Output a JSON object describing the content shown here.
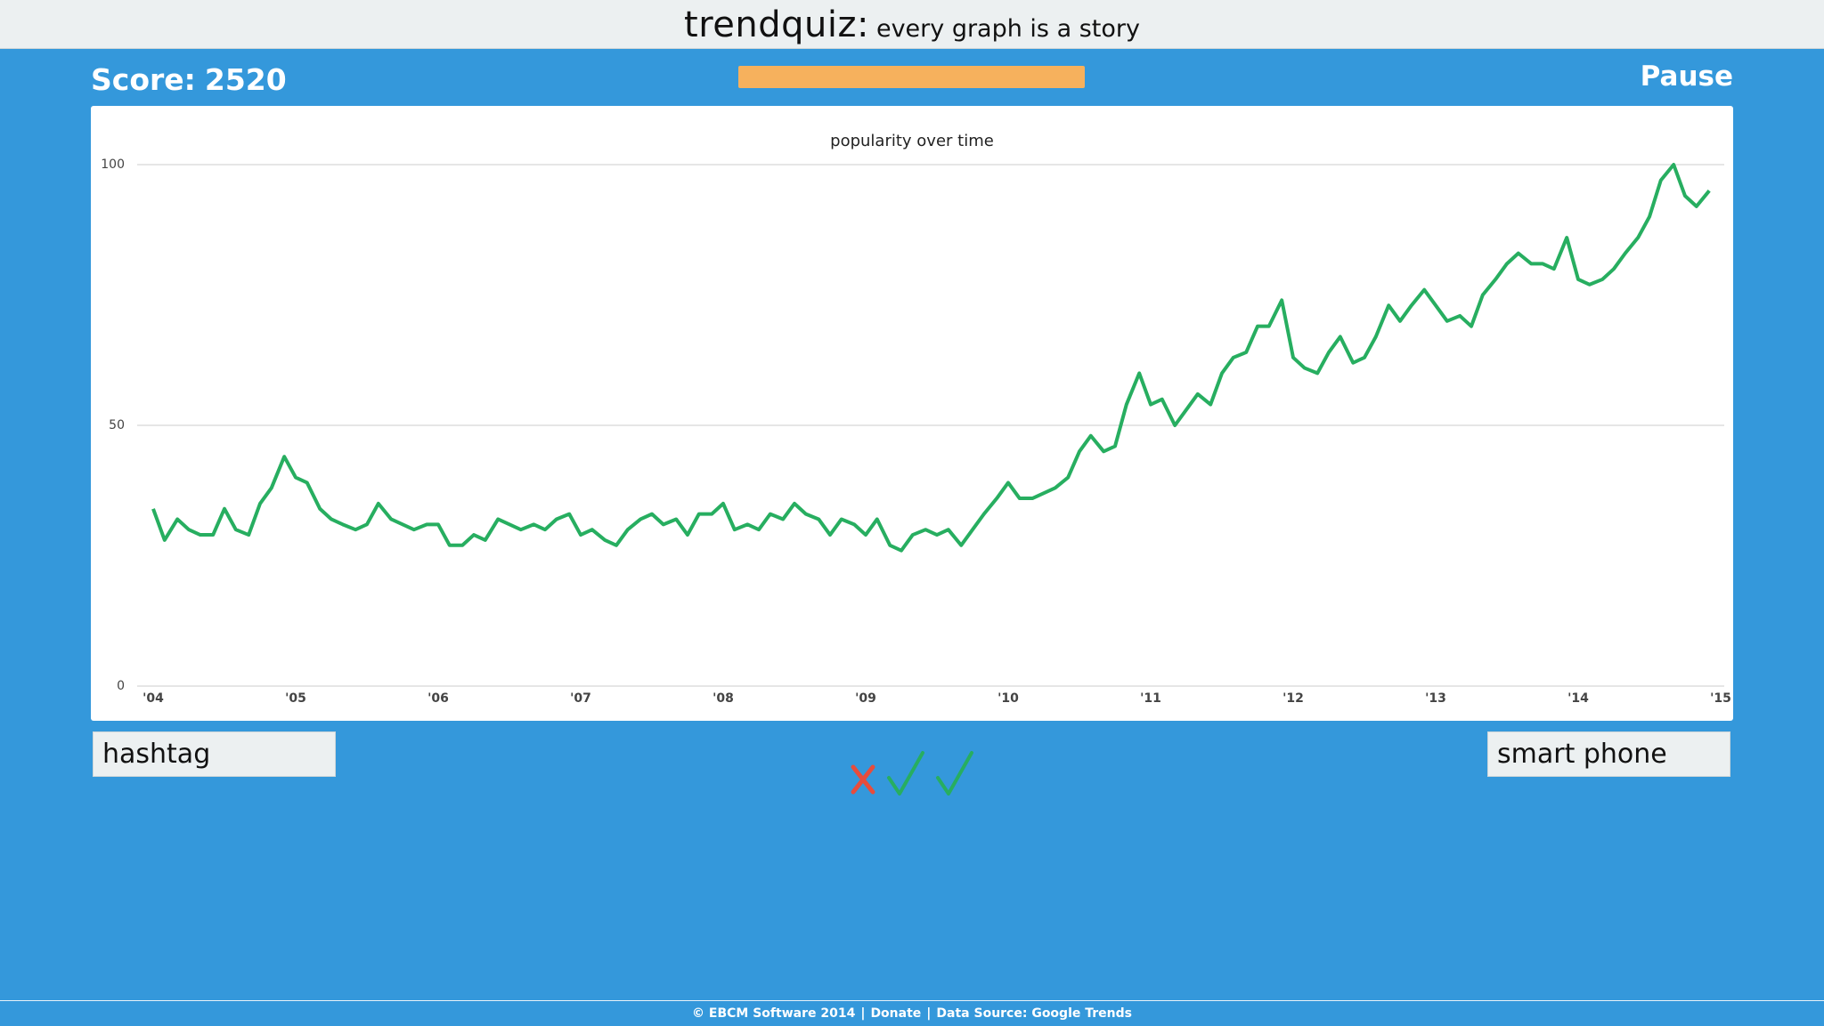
{
  "header": {
    "title": "trendquiz:",
    "subtitle": "every graph is a story"
  },
  "score": {
    "label": "Score:",
    "value": 2520
  },
  "pause": "Pause",
  "chart_data": {
    "type": "line",
    "title": "popularity over time",
    "x": [
      2004,
      2004.08,
      2004.17,
      2004.25,
      2004.33,
      2004.42,
      2004.5,
      2004.58,
      2004.67,
      2004.75,
      2004.83,
      2004.92,
      2005,
      2005.08,
      2005.17,
      2005.25,
      2005.33,
      2005.42,
      2005.5,
      2005.58,
      2005.67,
      2005.75,
      2005.83,
      2005.92,
      2006,
      2006.08,
      2006.17,
      2006.25,
      2006.33,
      2006.42,
      2006.5,
      2006.58,
      2006.67,
      2006.75,
      2006.83,
      2006.92,
      2007,
      2007.08,
      2007.17,
      2007.25,
      2007.33,
      2007.42,
      2007.5,
      2007.58,
      2007.67,
      2007.75,
      2007.83,
      2007.92,
      2008,
      2008.08,
      2008.17,
      2008.25,
      2008.33,
      2008.42,
      2008.5,
      2008.58,
      2008.67,
      2008.75,
      2008.83,
      2008.92,
      2009,
      2009.08,
      2009.17,
      2009.25,
      2009.33,
      2009.42,
      2009.5,
      2009.58,
      2009.67,
      2009.75,
      2009.83,
      2009.92,
      2010,
      2010.08,
      2010.17,
      2010.25,
      2010.33,
      2010.42,
      2010.5,
      2010.58,
      2010.67,
      2010.75,
      2010.83,
      2010.92,
      2011,
      2011.08,
      2011.17,
      2011.25,
      2011.33,
      2011.42,
      2011.5,
      2011.58,
      2011.67,
      2011.75,
      2011.83,
      2011.92,
      2012,
      2012.08,
      2012.17,
      2012.25,
      2012.33,
      2012.42,
      2012.5,
      2012.58,
      2012.67,
      2012.75,
      2012.83,
      2012.92,
      2013,
      2013.08,
      2013.17,
      2013.25,
      2013.33,
      2013.42,
      2013.5,
      2013.58,
      2013.67,
      2013.75,
      2013.83,
      2013.92,
      2014,
      2014.08,
      2014.17,
      2014.25,
      2014.33,
      2014.42,
      2014.5,
      2014.58,
      2014.67,
      2014.75,
      2014.83,
      2014.92
    ],
    "values": [
      34,
      28,
      32,
      30,
      29,
      29,
      34,
      30,
      29,
      35,
      38,
      44,
      40,
      39,
      34,
      32,
      31,
      30,
      31,
      35,
      32,
      31,
      30,
      31,
      31,
      27,
      27,
      29,
      28,
      32,
      31,
      30,
      31,
      30,
      32,
      33,
      29,
      30,
      28,
      27,
      30,
      32,
      33,
      31,
      32,
      29,
      33,
      33,
      35,
      30,
      31,
      30,
      33,
      32,
      35,
      33,
      32,
      29,
      32,
      31,
      29,
      32,
      27,
      26,
      29,
      30,
      29,
      30,
      27,
      30,
      33,
      36,
      39,
      36,
      36,
      37,
      38,
      40,
      45,
      48,
      45,
      46,
      54,
      60,
      54,
      55,
      50,
      53,
      56,
      54,
      60,
      63,
      64,
      69,
      69,
      74,
      63,
      61,
      60,
      64,
      67,
      62,
      63,
      67,
      73,
      70,
      73,
      76,
      73,
      70,
      71,
      69,
      75,
      78,
      81,
      83,
      81,
      81,
      80,
      86,
      78,
      77,
      78,
      80,
      83,
      86,
      90,
      97,
      100,
      94,
      92,
      95
    ],
    "color": "#27ae60",
    "xlim": [
      2004,
      2015
    ],
    "xticks": [
      {
        "value": 2004,
        "label": "'04"
      },
      {
        "value": 2005,
        "label": "'05"
      },
      {
        "value": 2006,
        "label": "'06"
      },
      {
        "value": 2007,
        "label": "'07"
      },
      {
        "value": 2008,
        "label": "'08"
      },
      {
        "value": 2009,
        "label": "'09"
      },
      {
        "value": 2010,
        "label": "'10"
      },
      {
        "value": 2011,
        "label": "'11"
      },
      {
        "value": 2012,
        "label": "'12"
      },
      {
        "value": 2013,
        "label": "'13"
      },
      {
        "value": 2014,
        "label": "'14"
      },
      {
        "value": 2015,
        "label": "'15"
      }
    ],
    "ylim": [
      0,
      100
    ],
    "yticks": [
      0,
      50,
      100
    ],
    "grid": true
  },
  "answers": {
    "left": "hashtag",
    "right": "smart phone"
  },
  "footer": {
    "items": [
      "© EBCM Software 2014",
      "Donate",
      "Data Source: Google Trends"
    ],
    "separator": "|"
  }
}
